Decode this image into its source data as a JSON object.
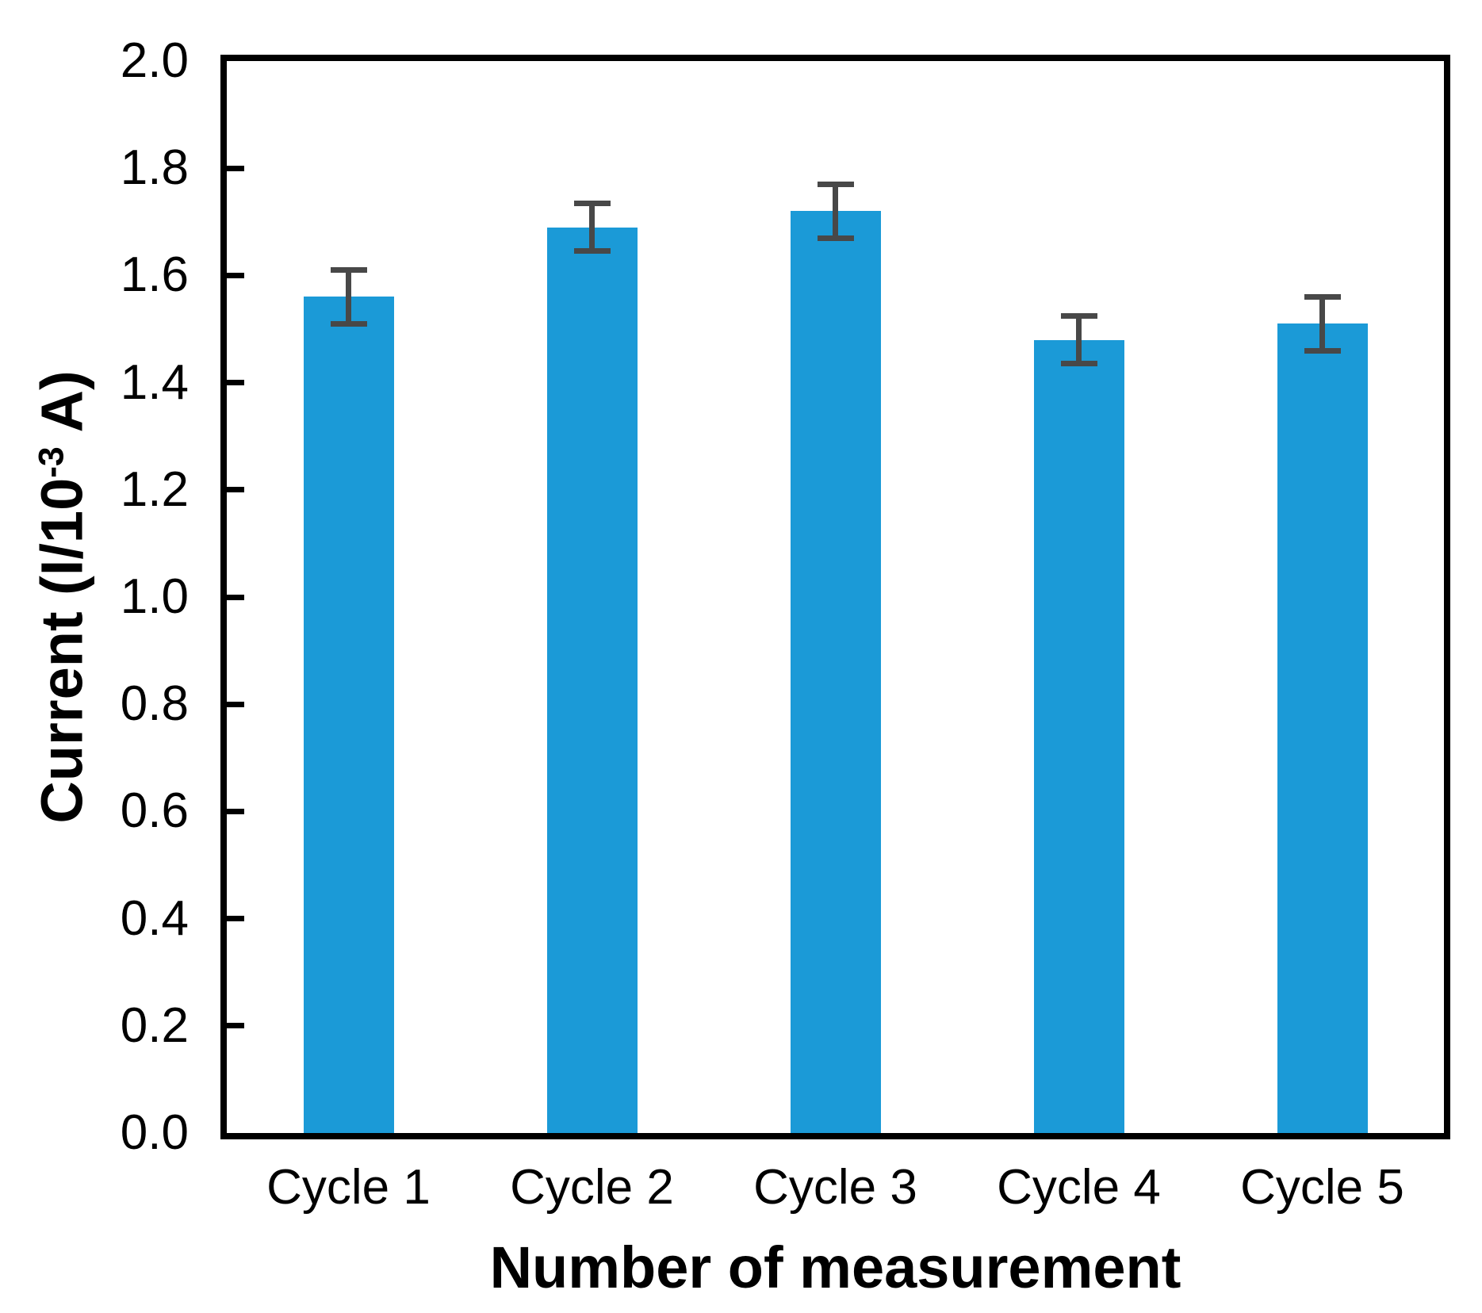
{
  "chart_data": {
    "type": "bar",
    "title": "",
    "xlabel": "Number of measurement",
    "ylabel": "Current (I/10⁻³ A)",
    "ylabel_parts": {
      "prefix": "Current (I/10",
      "superscript": "-3",
      "suffix": " A)"
    },
    "categories": [
      "Cycle 1",
      "Cycle 2",
      "Cycle 3",
      "Cycle 4",
      "Cycle 5"
    ],
    "values": [
      1.56,
      1.69,
      1.72,
      1.48,
      1.51
    ],
    "error_bars": [
      0.05,
      0.045,
      0.05,
      0.045,
      0.05
    ],
    "ylim": [
      0.0,
      2.0
    ],
    "ytick_labels": [
      "0.0",
      "0.2",
      "0.4",
      "0.6",
      "0.8",
      "1.0",
      "1.2",
      "1.4",
      "1.6",
      "1.8",
      "2.0"
    ],
    "grid": "off",
    "legend": "none",
    "bar_color": "#1b9ad7",
    "error_bar_color": "#484848",
    "axis_color": "#000000"
  }
}
